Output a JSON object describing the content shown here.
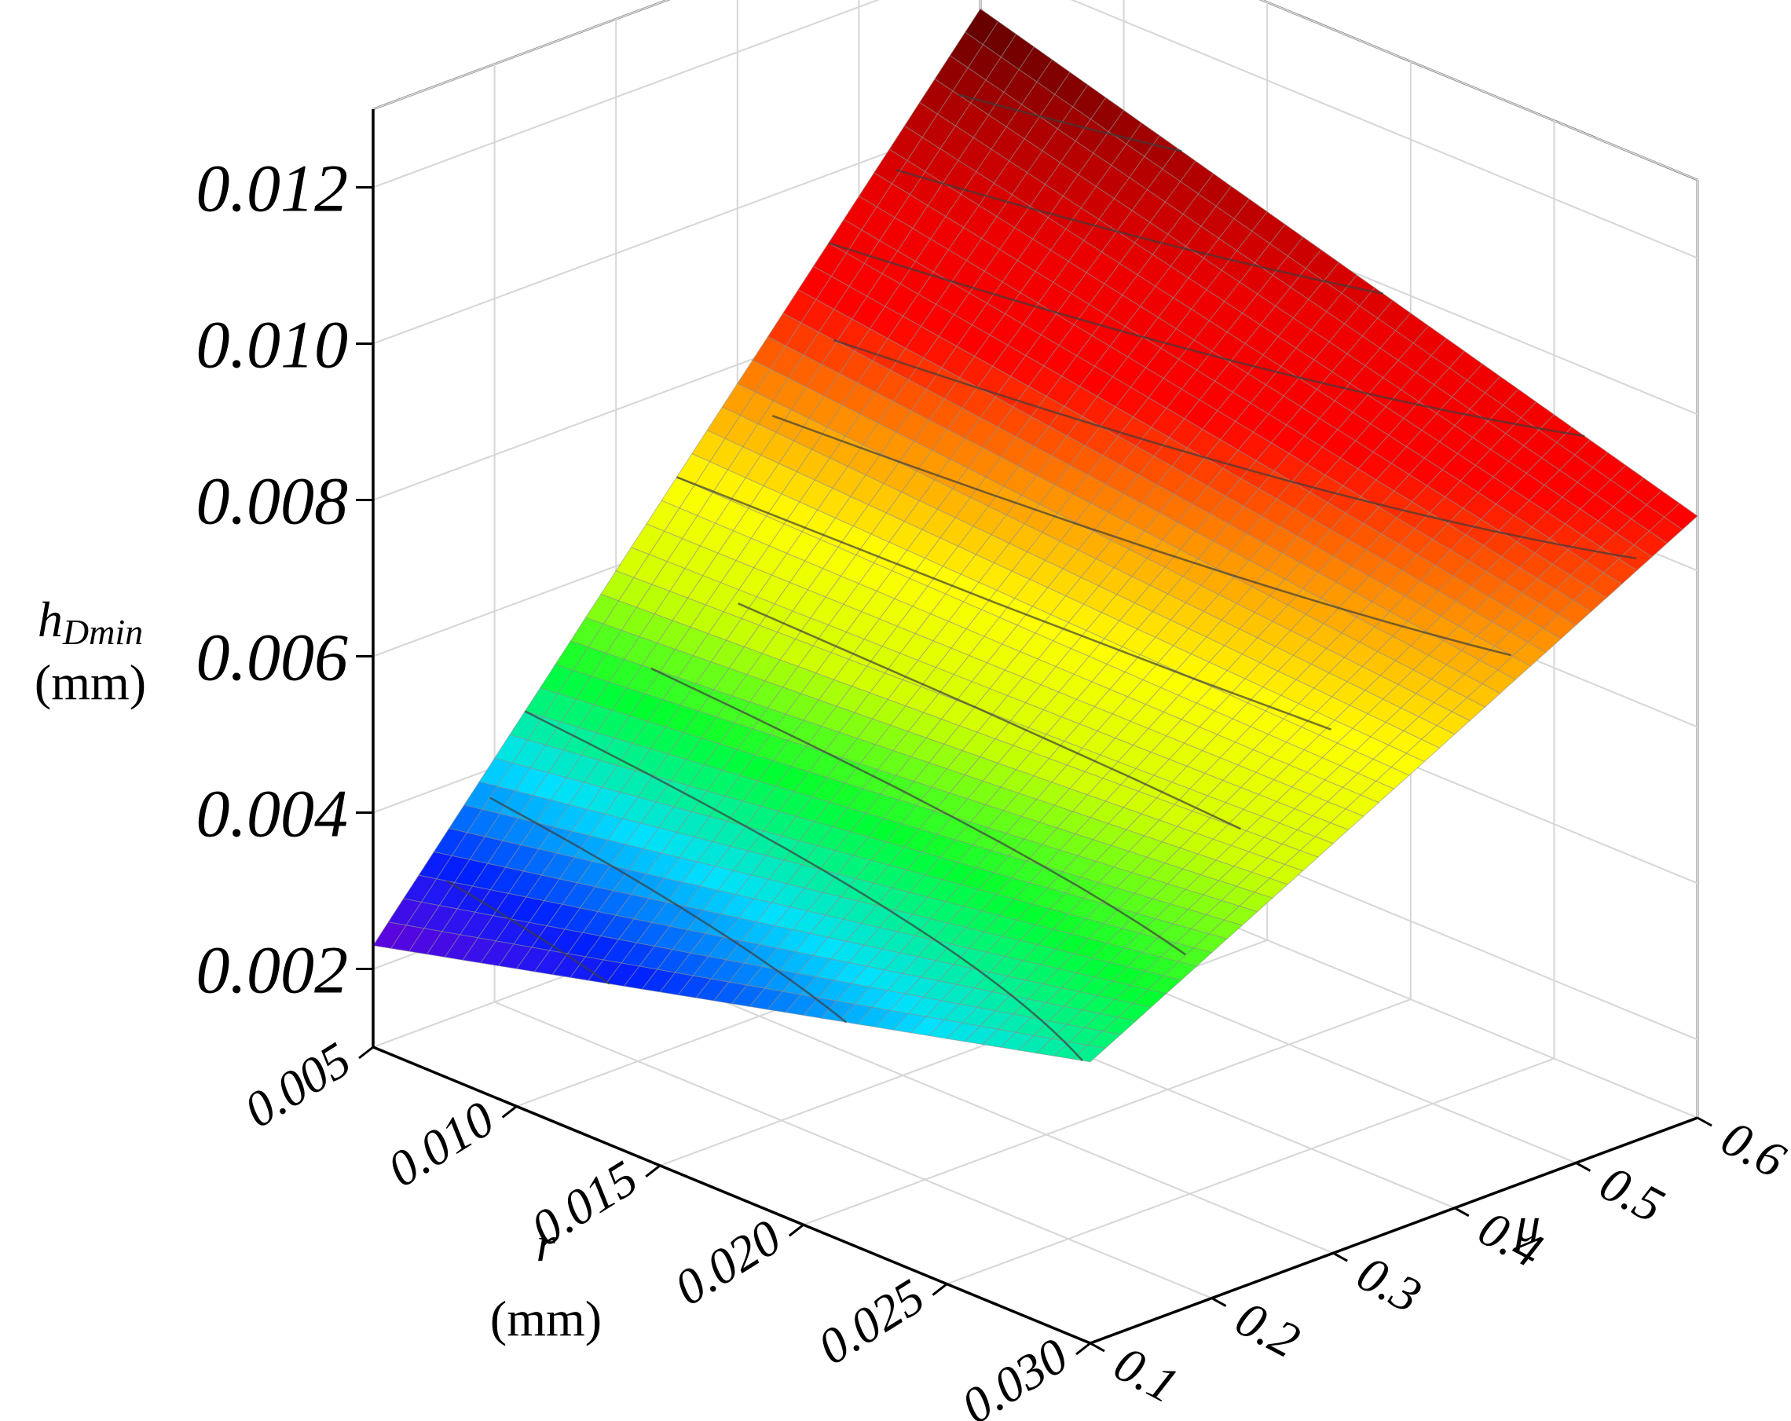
{
  "chart_data": {
    "type": "surface3d",
    "z_axis": {
      "label_main": "h",
      "label_sub": "Dmin",
      "label_unit": "(mm)",
      "ticks": [
        "0.002",
        "0.004",
        "0.006",
        "0.008",
        "0.010",
        "0.012"
      ],
      "range": [
        0.001,
        0.013
      ]
    },
    "x_axis": {
      "label": "r",
      "label_unit": "(mm)",
      "ticks": [
        "0.005",
        "0.010",
        "0.015",
        "0.020",
        "0.025",
        "0.030"
      ],
      "range": [
        0.005,
        0.03
      ]
    },
    "y_axis": {
      "label": "μ",
      "ticks": [
        "0.1",
        "0.2",
        "0.3",
        "0.4",
        "0.5",
        "0.6"
      ],
      "range": [
        0.1,
        0.6
      ]
    },
    "surface_corners": [
      {
        "r": 0.005,
        "mu": 0.1,
        "h": 0.0023
      },
      {
        "r": 0.03,
        "mu": 0.1,
        "h": 0.0046
      },
      {
        "r": 0.005,
        "mu": 0.6,
        "h": 0.0114
      },
      {
        "r": 0.03,
        "mu": 0.6,
        "h": 0.0087
      }
    ],
    "colormap": [
      "#6a00d8",
      "#0020ff",
      "#00e0ff",
      "#00ff30",
      "#d0ff00",
      "#ffff00",
      "#ff9000",
      "#ff0000",
      "#ee0000",
      "#b00000",
      "#5a0000"
    ],
    "grid": true
  }
}
